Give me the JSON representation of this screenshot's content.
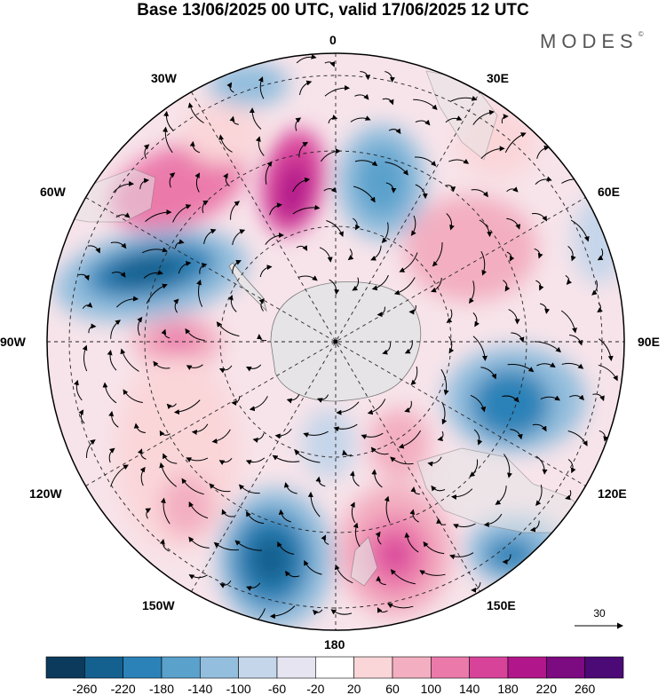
{
  "title": "Base 13/06/2025 00 UTC, valid 17/06/2025 12 UTC",
  "brand": "MODES",
  "brand_mark": "©",
  "longitude_labels": {
    "lon0": "0",
    "lon30e": "30E",
    "lon60e": "60E",
    "lon90e": "90E",
    "lon120e": "120E",
    "lon150e": "150E",
    "lon180": "180",
    "lon150w": "150W",
    "lon120w": "120W",
    "lon90w": "90W",
    "lon60w": "60W",
    "lon30w": "30W"
  },
  "reference_vector": {
    "value": "30"
  },
  "colorbar": {
    "ticks": [
      "-260",
      "-220",
      "-180",
      "-140",
      "-100",
      "-60",
      "-20",
      "20",
      "60",
      "100",
      "140",
      "180",
      "220",
      "260"
    ],
    "colors": [
      "#0c3a5c",
      "#14608f",
      "#2b82b8",
      "#5aa1cc",
      "#93bedd",
      "#c6d6ea",
      "#e6e4f1",
      "#ffffff",
      "#fad6d9",
      "#f3afc1",
      "#eb7aab",
      "#d8439a",
      "#b1178a",
      "#7c0a80",
      "#4b0a75"
    ]
  },
  "colors": {
    "land": "#e6e4e6",
    "coast": "#7a7a7a",
    "grid": "#222222"
  }
}
